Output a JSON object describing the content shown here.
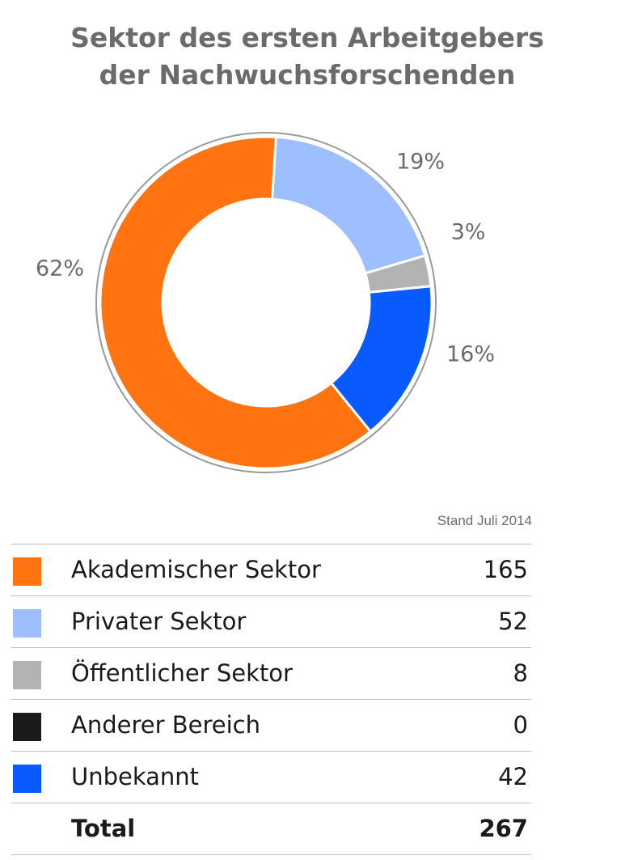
{
  "chart_data": {
    "type": "pie",
    "style": "donut",
    "title_lines": [
      "Sektor des ersten Arbeitgebers",
      "der Nachwuchsforschenden"
    ],
    "categories": [
      "Akademischer Sektor",
      "Privater Sektor",
      "Öffentlicher Sektor",
      "Anderer Bereich",
      "Unbekannt"
    ],
    "values": [
      165,
      52,
      8,
      0,
      42
    ],
    "percent_labels": [
      "62%",
      "19%",
      "3%",
      "",
      "16%"
    ],
    "colors": [
      "#ff7410",
      "#9dbfff",
      "#b3b3b3",
      "#1a1a1a",
      "#0a5bff"
    ],
    "note": "Stand Juli 2014",
    "total_label": "Total",
    "total_value": "267"
  },
  "table": {
    "rows": [
      {
        "label": "Akademischer Sektor",
        "value": "165"
      },
      {
        "label": "Privater Sektor",
        "value": "52"
      },
      {
        "label": "Öffentlicher Sektor",
        "value": "8"
      },
      {
        "label": "Anderer Bereich",
        "value": "0"
      },
      {
        "label": "Unbekannt",
        "value": "42"
      }
    ]
  }
}
